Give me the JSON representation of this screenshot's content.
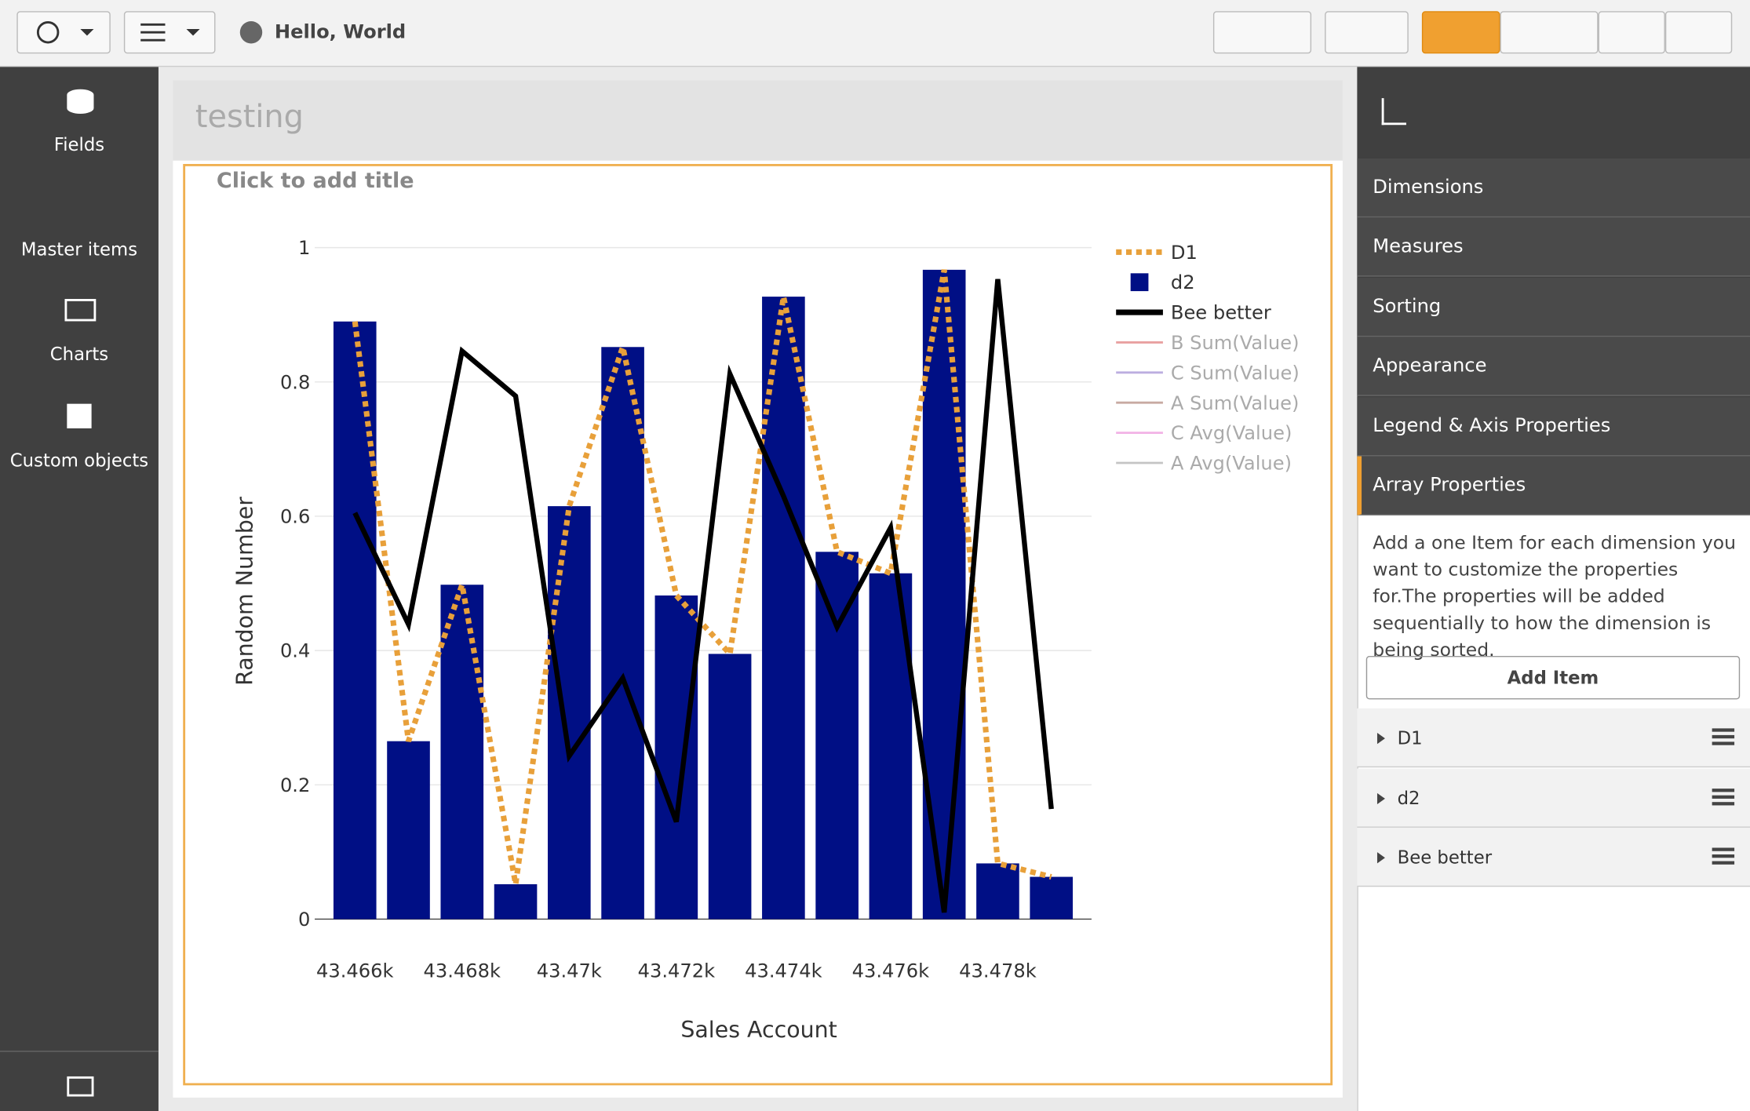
{
  "toolbar": {
    "app_title": "Hello, World"
  },
  "sidebar": {
    "items": [
      "Fields",
      "Master items",
      "Charts",
      "Custom objects"
    ]
  },
  "sheet": {
    "title": "testing",
    "object_title_placeholder": "Click to add title"
  },
  "panel": {
    "sections": [
      "Dimensions",
      "Measures",
      "Sorting",
      "Appearance",
      "Legend & Axis Properties",
      "Array Properties"
    ],
    "description": "Add a one Item for each dimension you want to customize the properties for.The properties will be added sequentially to how the dimension is being sorted.",
    "add_button": "Add Item",
    "items": [
      "D1",
      "d2",
      "Bee better"
    ]
  },
  "chart_data": {
    "type": "bar-line",
    "x_label": "Sales Account",
    "y_label": "Random Number",
    "x": [
      43466,
      43467,
      43468,
      43469,
      43470,
      43471,
      43472,
      43473,
      43474,
      43475,
      43476,
      43477,
      43478,
      43479
    ],
    "series": [
      {
        "name": "D1",
        "color": "#e8a03a",
        "kind": "line",
        "style": "dotted",
        "values": [
          0.89,
          0.265,
          0.498,
          0.052,
          0.615,
          0.852,
          0.482,
          0.395,
          0.927,
          0.547,
          0.515,
          0.967,
          0.083,
          0.063
        ]
      },
      {
        "name": "d2",
        "color": "#000f85",
        "kind": "bar",
        "values": [
          0.89,
          0.265,
          0.498,
          0.052,
          0.615,
          0.852,
          0.482,
          0.395,
          0.927,
          0.547,
          0.515,
          0.967,
          0.083,
          0.063
        ]
      },
      {
        "name": "Bee better",
        "color": "#000000",
        "kind": "line",
        "style": "solid",
        "values": [
          0.605,
          0.439,
          0.846,
          0.779,
          0.243,
          0.359,
          0.145,
          0.812,
          0.63,
          0.435,
          0.583,
          0.01,
          0.953,
          0.164
        ]
      }
    ],
    "legend_inactive": [
      {
        "name": "B Sum(Value)",
        "color": "#e8a0a0"
      },
      {
        "name": "C Sum(Value)",
        "color": "#bcaee0"
      },
      {
        "name": "A Sum(Value)",
        "color": "#c8aaa2"
      },
      {
        "name": "C Avg(Value)",
        "color": "#f2b2e6"
      },
      {
        "name": "A Avg(Value)",
        "color": "#c4c4c4"
      }
    ],
    "xlim": [
      43465.25,
      43479.75
    ],
    "xticks": [
      {
        "value": 43466,
        "label": "43.466k"
      },
      {
        "value": 43468,
        "label": "43.468k"
      },
      {
        "value": 43470,
        "label": "43.47k"
      },
      {
        "value": 43472,
        "label": "43.472k"
      },
      {
        "value": 43474,
        "label": "43.474k"
      },
      {
        "value": 43476,
        "label": "43.476k"
      },
      {
        "value": 43478,
        "label": "43.478k"
      }
    ],
    "ylim": [
      0,
      1
    ],
    "yticks": [
      0,
      0.2,
      0.4,
      0.6,
      0.8,
      1
    ],
    "grid": true,
    "legend": "right"
  }
}
